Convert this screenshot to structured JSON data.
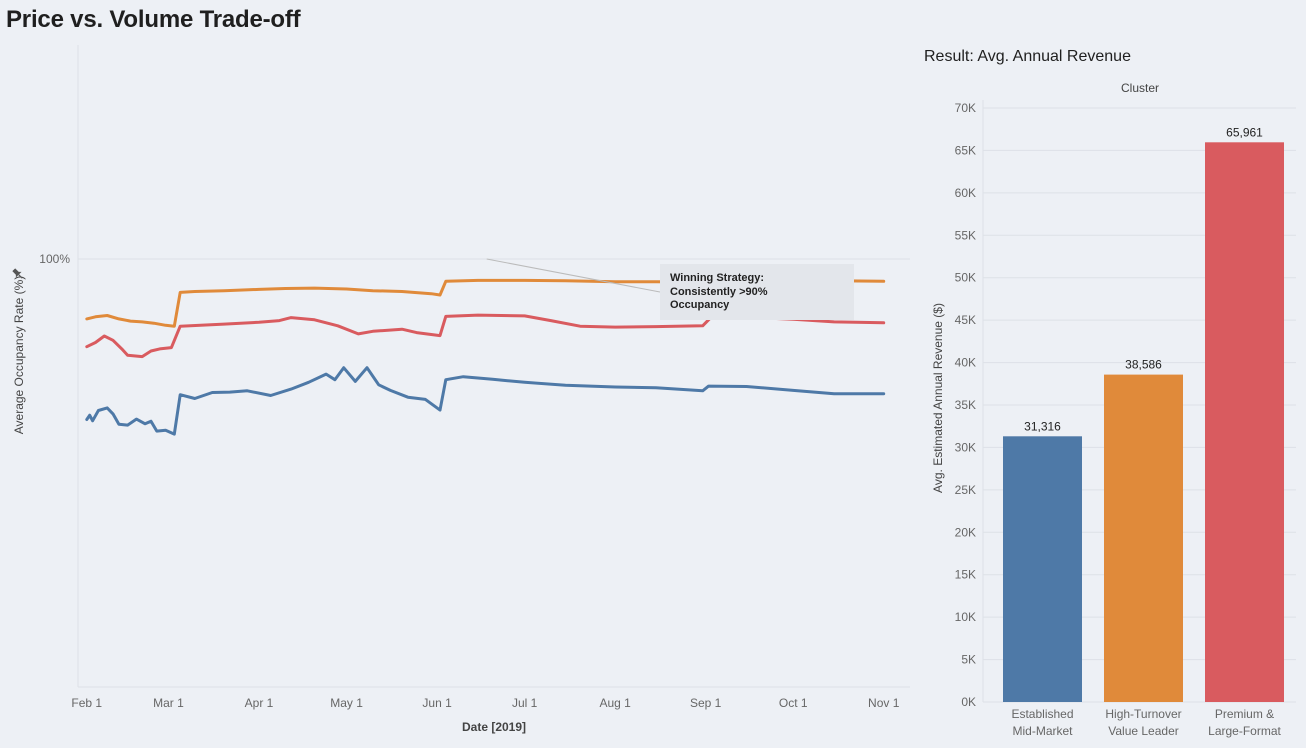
{
  "dashboard": {
    "title": "Price vs. Volume Trade-off",
    "colors": {
      "background": "#edf0f5",
      "blue": "#4e79a7",
      "orange": "#e08a3a",
      "red": "#d95b5f"
    }
  },
  "chart_data": [
    {
      "type": "line",
      "title": "",
      "xlabel": "Date [2019]",
      "ylabel": "Average Occupancy Rate (%)",
      "x_tick_labels": [
        "Feb 1",
        "Mar 1",
        "Apr 1",
        "May 1",
        "Jun 1",
        "Jul 1",
        "Aug 1",
        "Sep 1",
        "Oct 1",
        "Nov 1"
      ],
      "y_tick_labels": [
        "100%"
      ],
      "xlim": [
        "2019-01-29",
        "2019-11-10"
      ],
      "ylim": [
        0,
        150
      ],
      "grid": true,
      "annotation": {
        "lines": [
          "Winning Strategy:",
          "Consistently >90%",
          "Occupancy"
        ],
        "point": {
          "x": "2019-06-18",
          "y": 100
        }
      },
      "series": [
        {
          "color": "#e08a3a",
          "points": [
            [
              "2019-02-01",
              86
            ],
            [
              "2019-02-04",
              86.5
            ],
            [
              "2019-02-08",
              86.8
            ],
            [
              "2019-02-12",
              86
            ],
            [
              "2019-02-16",
              85.5
            ],
            [
              "2019-02-20",
              85.3
            ],
            [
              "2019-02-24",
              85
            ],
            [
              "2019-02-28",
              84.5
            ],
            [
              "2019-03-03",
              84.3
            ],
            [
              "2019-03-05",
              92.2
            ],
            [
              "2019-03-10",
              92.4
            ],
            [
              "2019-03-20",
              92.6
            ],
            [
              "2019-04-01",
              92.9
            ],
            [
              "2019-04-10",
              93.1
            ],
            [
              "2019-04-20",
              93.2
            ],
            [
              "2019-05-01",
              93
            ],
            [
              "2019-05-10",
              92.6
            ],
            [
              "2019-05-20",
              92.4
            ],
            [
              "2019-05-30",
              91.9
            ],
            [
              "2019-06-02",
              91.6
            ],
            [
              "2019-06-04",
              94.8
            ],
            [
              "2019-06-15",
              95
            ],
            [
              "2019-07-01",
              95
            ],
            [
              "2019-07-15",
              94.9
            ],
            [
              "2019-08-01",
              94.7
            ],
            [
              "2019-08-15",
              94.7
            ],
            [
              "2019-08-31",
              94.6
            ],
            [
              "2019-09-02",
              95.1
            ],
            [
              "2019-09-15",
              95.2
            ],
            [
              "2019-10-01",
              95
            ],
            [
              "2019-10-15",
              94.9
            ],
            [
              "2019-11-01",
              94.8
            ]
          ]
        },
        {
          "color": "#d95b5f",
          "points": [
            [
              "2019-02-01",
              79.5
            ],
            [
              "2019-02-04",
              80.5
            ],
            [
              "2019-02-07",
              82
            ],
            [
              "2019-02-10",
              81
            ],
            [
              "2019-02-13",
              79
            ],
            [
              "2019-02-15",
              77.5
            ],
            [
              "2019-02-20",
              77.2
            ],
            [
              "2019-02-23",
              78.5
            ],
            [
              "2019-02-26",
              79
            ],
            [
              "2019-03-02",
              79.3
            ],
            [
              "2019-03-05",
              84.3
            ],
            [
              "2019-03-12",
              84.5
            ],
            [
              "2019-03-20",
              84.8
            ],
            [
              "2019-04-01",
              85.2
            ],
            [
              "2019-04-08",
              85.6
            ],
            [
              "2019-04-12",
              86.3
            ],
            [
              "2019-04-20",
              85.8
            ],
            [
              "2019-04-28",
              84.4
            ],
            [
              "2019-05-05",
              82.5
            ],
            [
              "2019-05-10",
              83.1
            ],
            [
              "2019-05-20",
              83.6
            ],
            [
              "2019-05-25",
              82.8
            ],
            [
              "2019-06-02",
              82.1
            ],
            [
              "2019-06-04",
              86.6
            ],
            [
              "2019-06-15",
              86.9
            ],
            [
              "2019-07-01",
              86.7
            ],
            [
              "2019-07-10",
              85.6
            ],
            [
              "2019-07-20",
              84.3
            ],
            [
              "2019-08-01",
              84.1
            ],
            [
              "2019-08-15",
              84.2
            ],
            [
              "2019-08-31",
              84.4
            ],
            [
              "2019-09-03",
              86.5
            ],
            [
              "2019-09-15",
              86.4
            ],
            [
              "2019-10-01",
              85.9
            ],
            [
              "2019-10-15",
              85.3
            ],
            [
              "2019-11-01",
              85.1
            ]
          ]
        },
        {
          "color": "#4e79a7",
          "points": [
            [
              "2019-02-01",
              62.5
            ],
            [
              "2019-02-02",
              63.5
            ],
            [
              "2019-02-03",
              62.2
            ],
            [
              "2019-02-05",
              64.6
            ],
            [
              "2019-02-08",
              65.2
            ],
            [
              "2019-02-10",
              63.8
            ],
            [
              "2019-02-12",
              61.4
            ],
            [
              "2019-02-15",
              61.2
            ],
            [
              "2019-02-18",
              62.6
            ],
            [
              "2019-02-21",
              61.5
            ],
            [
              "2019-02-23",
              62.1
            ],
            [
              "2019-02-25",
              59.8
            ],
            [
              "2019-02-28",
              60
            ],
            [
              "2019-03-03",
              59.1
            ],
            [
              "2019-03-05",
              68.3
            ],
            [
              "2019-03-10",
              67.4
            ],
            [
              "2019-03-16",
              68.8
            ],
            [
              "2019-03-22",
              68.9
            ],
            [
              "2019-03-28",
              69.2
            ],
            [
              "2019-04-05",
              68.1
            ],
            [
              "2019-04-12",
              69.6
            ],
            [
              "2019-04-18",
              71.2
            ],
            [
              "2019-04-24",
              73.1
            ],
            [
              "2019-04-27",
              71.8
            ],
            [
              "2019-04-30",
              74.6
            ],
            [
              "2019-05-04",
              71.4
            ],
            [
              "2019-05-08",
              74.6
            ],
            [
              "2019-05-12",
              70.6
            ],
            [
              "2019-05-16",
              69.3
            ],
            [
              "2019-05-22",
              67.7
            ],
            [
              "2019-05-28",
              67.2
            ],
            [
              "2019-06-02",
              64.7
            ],
            [
              "2019-06-04",
              71.8
            ],
            [
              "2019-06-10",
              72.5
            ],
            [
              "2019-06-20",
              71.9
            ],
            [
              "2019-07-01",
              71.2
            ],
            [
              "2019-07-15",
              70.5
            ],
            [
              "2019-08-01",
              70.1
            ],
            [
              "2019-08-15",
              69.9
            ],
            [
              "2019-08-31",
              69.2
            ],
            [
              "2019-09-02",
              70.3
            ],
            [
              "2019-09-15",
              70.2
            ],
            [
              "2019-10-01",
              69.3
            ],
            [
              "2019-10-15",
              68.5
            ],
            [
              "2019-11-01",
              68.5
            ]
          ]
        }
      ]
    },
    {
      "type": "bar",
      "title": "Result: Avg. Annual Revenue",
      "column_header": "Cluster",
      "ylabel": "Avg. Estimated Annual Revenue ($)",
      "ylim": [
        0,
        70000
      ],
      "y_tick_labels": [
        "0K",
        "5K",
        "10K",
        "15K",
        "20K",
        "25K",
        "30K",
        "35K",
        "40K",
        "45K",
        "50K",
        "55K",
        "60K",
        "65K",
        "70K"
      ],
      "grid": true,
      "categories": [
        {
          "line1": "Established",
          "line2": "Mid-Market",
          "value": 31316,
          "label": "31,316",
          "color": "#4e79a7"
        },
        {
          "line1": "High-Turnover",
          "line2": "Value Leader",
          "value": 38586,
          "label": "38,586",
          "color": "#e08a3a"
        },
        {
          "line1": "Premium &",
          "line2": "Large-Format",
          "value": 65961,
          "label": "65,961",
          "color": "#d95b5f"
        }
      ]
    }
  ]
}
